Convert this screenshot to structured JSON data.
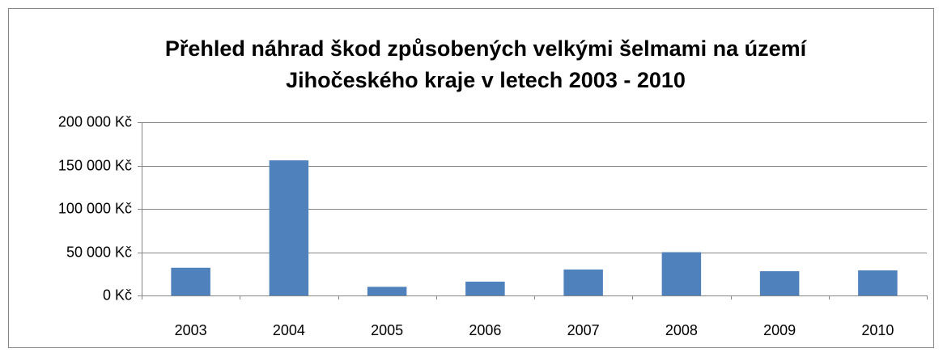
{
  "chart_data": {
    "type": "bar",
    "title": [
      "Přehled náhrad škod způsobených velkými šelmami na území",
      "Jihočeského kraje v letech 2003 - 2010"
    ],
    "categories": [
      "2003",
      "2004",
      "2005",
      "2006",
      "2007",
      "2008",
      "2009",
      "2010"
    ],
    "values": [
      32000,
      156000,
      10000,
      16000,
      30000,
      50000,
      28000,
      29000
    ],
    "color": "#4f81bd",
    "ylim": [
      0,
      200000
    ],
    "yticks": [
      {
        "value": 0,
        "label": "0 Kč"
      },
      {
        "value": 50000,
        "label": "50 000 Kč"
      },
      {
        "value": 100000,
        "label": "100 000 Kč"
      },
      {
        "value": 150000,
        "label": "150 000 Kč"
      },
      {
        "value": 200000,
        "label": "200 000 Kč"
      }
    ],
    "grid": true
  }
}
